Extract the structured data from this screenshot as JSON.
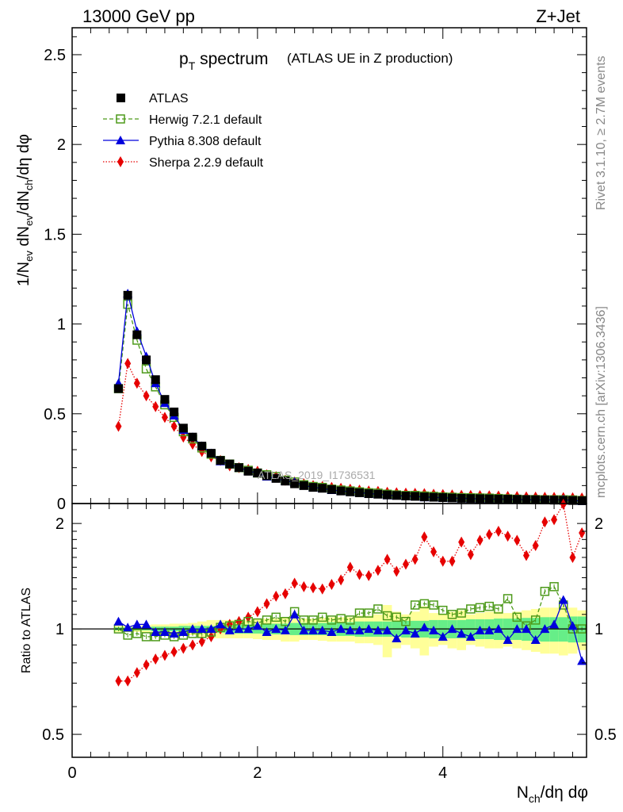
{
  "header": {
    "left": "13000 GeV pp",
    "right": "Z+Jet"
  },
  "title": {
    "main_p": "p",
    "main_sub": "T",
    "main_rest": " spectrum",
    "paren": "(ATLAS UE in Z production)"
  },
  "side_labels": {
    "rivet": "Rivet 3.1.10, ≥ 2.7M events",
    "mcplots": "mcplots.cern.ch [arXiv:1306.3436]"
  },
  "watermark": "ATLAS_2019_I1736531",
  "legend": [
    {
      "label": "ATLAS"
    },
    {
      "label": "Herwig 7.2.1 default"
    },
    {
      "label": "Pythia 8.308 default"
    },
    {
      "label": "Sherpa 2.2.9 default"
    }
  ],
  "ratio_label": "Ratio to ATLAS",
  "colors": {
    "data": "#000000",
    "herwig": "#4d9a1a",
    "pythia": "#0000dd",
    "sherpa": "#e60000",
    "band_inner": "#66ee88",
    "band_outer": "#ffff99"
  },
  "chart_data": [
    {
      "type": "scatter",
      "panel": "main",
      "xlabel": "N_ch/dη dφ",
      "ylabel": "1/N_ev dN_ev/dN_ch/dη dφ",
      "xlim": [
        0,
        5.55
      ],
      "ylim": [
        0,
        2.65
      ],
      "xticks": [
        "0",
        "2",
        "4"
      ],
      "yticks": [
        "0",
        "0.5",
        "1",
        "1.5",
        "2",
        "2.5"
      ],
      "x": [
        0.5,
        0.6,
        0.7,
        0.8,
        0.9,
        1.0,
        1.1,
        1.2,
        1.3,
        1.4,
        1.5,
        1.6,
        1.7,
        1.8,
        1.9,
        2.0,
        2.1,
        2.2,
        2.3,
        2.4,
        2.5,
        2.6,
        2.7,
        2.8,
        2.9,
        3.0,
        3.1,
        3.2,
        3.3,
        3.4,
        3.5,
        3.6,
        3.7,
        3.8,
        3.9,
        4.0,
        4.1,
        4.2,
        4.3,
        4.4,
        4.5,
        4.6,
        4.7,
        4.8,
        4.9,
        5.0,
        5.1,
        5.2,
        5.3,
        5.4,
        5.5
      ],
      "series": [
        {
          "name": "ATLAS",
          "values": [
            0.64,
            1.16,
            0.94,
            0.8,
            0.69,
            0.58,
            0.51,
            0.42,
            0.37,
            0.32,
            0.28,
            0.24,
            0.22,
            0.2,
            0.18,
            0.17,
            0.155,
            0.14,
            0.125,
            0.11,
            0.1,
            0.09,
            0.085,
            0.078,
            0.07,
            0.065,
            0.06,
            0.055,
            0.052,
            0.048,
            0.045,
            0.042,
            0.04,
            0.037,
            0.035,
            0.033,
            0.031,
            0.029,
            0.028,
            0.027,
            0.026,
            0.025,
            0.024,
            0.023,
            0.022,
            0.021,
            0.02,
            0.019,
            0.018,
            0.017,
            0.016
          ]
        },
        {
          "name": "Herwig 7.2.1 default",
          "values": [
            0.64,
            1.11,
            0.91,
            0.75,
            0.65,
            0.55,
            0.48,
            0.4,
            0.36,
            0.31,
            0.275,
            0.24,
            0.22,
            0.2,
            0.185,
            0.17,
            0.16,
            0.15,
            0.13,
            0.12,
            0.105,
            0.095,
            0.09,
            0.08,
            0.075,
            0.07,
            0.065,
            0.06,
            0.058,
            0.052,
            0.048,
            0.045,
            0.045,
            0.042,
            0.04,
            0.037,
            0.035,
            0.033,
            0.032,
            0.031,
            0.03,
            0.028,
            0.026,
            0.024,
            0.022,
            0.022,
            0.021,
            0.021,
            0.021,
            0.02,
            0.017
          ]
        },
        {
          "name": "Pythia 8.308 default",
          "values": [
            0.67,
            1.17,
            0.96,
            0.82,
            0.67,
            0.56,
            0.49,
            0.41,
            0.37,
            0.32,
            0.28,
            0.235,
            0.22,
            0.2,
            0.18,
            0.17,
            0.15,
            0.14,
            0.125,
            0.12,
            0.1,
            0.09,
            0.085,
            0.075,
            0.07,
            0.065,
            0.06,
            0.055,
            0.052,
            0.046,
            0.044,
            0.04,
            0.04,
            0.035,
            0.035,
            0.032,
            0.03,
            0.029,
            0.027,
            0.026,
            0.025,
            0.024,
            0.023,
            0.022,
            0.021,
            0.02,
            0.02,
            0.02,
            0.022,
            0.017,
            0.014
          ]
        },
        {
          "name": "Sherpa 2.2.9 default",
          "values": [
            0.43,
            0.78,
            0.67,
            0.6,
            0.54,
            0.48,
            0.43,
            0.37,
            0.33,
            0.29,
            0.26,
            0.24,
            0.21,
            0.2,
            0.19,
            0.18,
            0.16,
            0.15,
            0.13,
            0.12,
            0.11,
            0.1,
            0.095,
            0.09,
            0.085,
            0.08,
            0.075,
            0.07,
            0.068,
            0.063,
            0.06,
            0.058,
            0.057,
            0.055,
            0.052,
            0.05,
            0.048,
            0.046,
            0.045,
            0.044,
            0.043,
            0.042,
            0.04,
            0.039,
            0.037,
            0.036,
            0.035,
            0.034,
            0.033,
            0.032,
            0.031
          ]
        }
      ]
    },
    {
      "type": "scatter",
      "panel": "ratio",
      "xlabel": "N_ch/dη dφ",
      "ylabel": "Ratio to ATLAS",
      "xlim": [
        0,
        5.55
      ],
      "ylim": [
        0.43,
        2.28
      ],
      "yscale": "log",
      "xticks": [
        "0",
        "2",
        "4"
      ],
      "yticks": [
        "0.5",
        "1",
        "2"
      ],
      "reference": 1.0,
      "band_inner_halfwidth": [
        0.01,
        0.01,
        0.01,
        0.01,
        0.015,
        0.015,
        0.015,
        0.02,
        0.02,
        0.02,
        0.02,
        0.025,
        0.025,
        0.03,
        0.03,
        0.03,
        0.035,
        0.035,
        0.035,
        0.04,
        0.04,
        0.04,
        0.04,
        0.045,
        0.045,
        0.045,
        0.05,
        0.05,
        0.05,
        0.05,
        0.05,
        0.055,
        0.055,
        0.055,
        0.06,
        0.06,
        0.06,
        0.06,
        0.065,
        0.065,
        0.065,
        0.07,
        0.07,
        0.07,
        0.075,
        0.075,
        0.08,
        0.08,
        0.08,
        0.085,
        0.085
      ],
      "band_outer_halfwidth": [
        0.02,
        0.02,
        0.02,
        0.025,
        0.03,
        0.03,
        0.035,
        0.035,
        0.04,
        0.05,
        0.06,
        0.06,
        0.06,
        0.06,
        0.06,
        0.065,
        0.07,
        0.07,
        0.08,
        0.08,
        0.07,
        0.07,
        0.075,
        0.08,
        0.08,
        0.08,
        0.09,
        0.09,
        0.1,
        0.17,
        0.12,
        0.1,
        0.12,
        0.16,
        0.11,
        0.1,
        0.12,
        0.13,
        0.1,
        0.11,
        0.12,
        0.12,
        0.11,
        0.12,
        0.13,
        0.14,
        0.15,
        0.15,
        0.16,
        0.15,
        0.13
      ],
      "series": [
        {
          "name": "Herwig 7.2.1 default",
          "values": [
            1.0,
            0.96,
            0.97,
            0.95,
            0.95,
            0.96,
            0.95,
            0.96,
            0.97,
            0.97,
            0.98,
            1.01,
            1.02,
            1.03,
            1.05,
            1.04,
            1.06,
            1.08,
            1.05,
            1.12,
            1.06,
            1.06,
            1.08,
            1.06,
            1.07,
            1.06,
            1.11,
            1.11,
            1.14,
            1.09,
            1.08,
            1.05,
            1.17,
            1.18,
            1.17,
            1.13,
            1.1,
            1.11,
            1.14,
            1.15,
            1.16,
            1.14,
            1.22,
            1.08,
            1.02,
            1.06,
            1.28,
            1.32,
            1.17,
            1.0,
            1.0
          ]
        },
        {
          "name": "Pythia 8.308 default",
          "values": [
            1.05,
            1.01,
            1.03,
            1.03,
            0.98,
            0.98,
            0.97,
            0.98,
            1.0,
            1.0,
            1.0,
            1.03,
            0.99,
            1.0,
            1.0,
            1.02,
            0.98,
            1.0,
            0.99,
            1.1,
            0.99,
            0.99,
            0.99,
            0.98,
            1.0,
            0.99,
            0.99,
            1.0,
            0.99,
            0.99,
            0.94,
            0.99,
            0.97,
            1.01,
            0.99,
            0.95,
            1.0,
            0.97,
            0.95,
            0.99,
            0.99,
            1.0,
            0.93,
            1.0,
            1.0,
            0.93,
            1.0,
            1.03,
            1.21,
            1.02,
            0.81
          ]
        },
        {
          "name": "Sherpa 2.2.9 default",
          "values": [
            0.71,
            0.71,
            0.75,
            0.79,
            0.82,
            0.84,
            0.86,
            0.88,
            0.9,
            0.92,
            0.95,
            1.0,
            1.03,
            1.05,
            1.08,
            1.12,
            1.18,
            1.24,
            1.26,
            1.35,
            1.32,
            1.31,
            1.3,
            1.34,
            1.38,
            1.5,
            1.43,
            1.42,
            1.47,
            1.58,
            1.46,
            1.53,
            1.58,
            1.83,
            1.66,
            1.56,
            1.56,
            1.77,
            1.63,
            1.79,
            1.86,
            1.9,
            1.84,
            1.79,
            1.62,
            1.73,
            2.02,
            2.05,
            2.27,
            1.6,
            1.88
          ]
        }
      ]
    }
  ]
}
